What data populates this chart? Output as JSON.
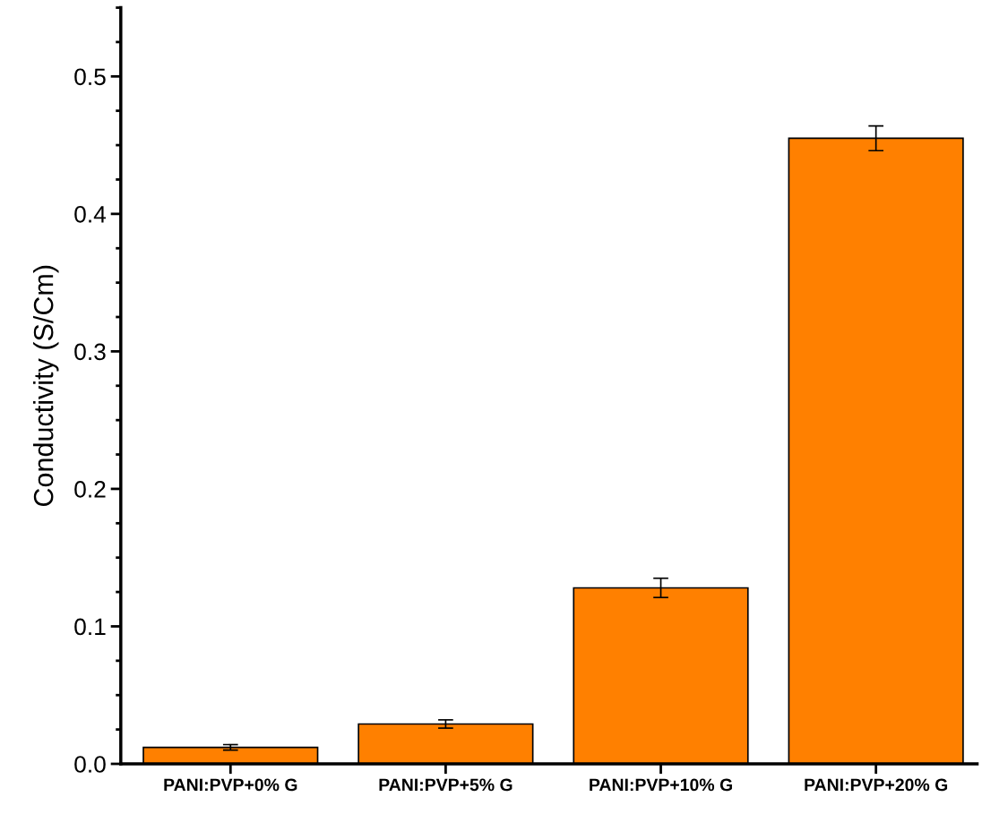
{
  "chart_data": {
    "type": "bar",
    "ylabel": "Conductivity (S/Cm)",
    "categories": [
      "PANI:PVP+0% G",
      "PANI:PVP+5% G",
      "PANI:PVP+10% G",
      "PANI:PVP+20% G"
    ],
    "values": [
      0.012,
      0.029,
      0.128,
      0.455
    ],
    "errors": [
      0.002,
      0.003,
      0.007,
      0.009
    ],
    "color": "#ff8000",
    "ylim": [
      0,
      0.55
    ],
    "yticks": [
      {
        "value": 0,
        "label": "0.0"
      },
      0.1,
      0.2,
      0.3,
      0.4,
      0.5
    ],
    "grid": false
  }
}
